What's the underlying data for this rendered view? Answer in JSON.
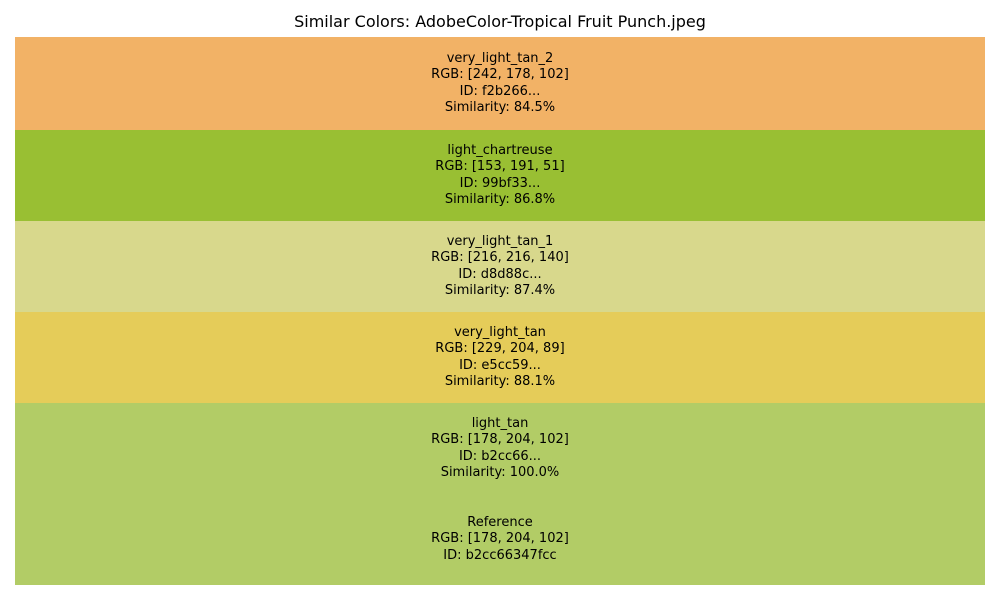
{
  "chart_data": {
    "type": "bar",
    "title": "Similar Colors: AdobeColor-Tropical Fruit Punch.jpeg",
    "orientation": "horizontal-stacked-swatches",
    "grid": false,
    "legend": "none",
    "swatches": [
      {
        "name": "very_light_tan_2",
        "rgb_label": "RGB: [242, 178, 102]",
        "id_label": "ID: f2b266...",
        "similarity_label": "Similarity: 84.5%",
        "similarity": 84.5,
        "color": "#f2b266"
      },
      {
        "name": "light_chartreuse",
        "rgb_label": "RGB: [153, 191, 51]",
        "id_label": "ID: 99bf33...",
        "similarity_label": "Similarity: 86.8%",
        "similarity": 86.8,
        "color": "#99bf33"
      },
      {
        "name": "very_light_tan_1",
        "rgb_label": "RGB: [216, 216, 140]",
        "id_label": "ID: d8d88c...",
        "similarity_label": "Similarity: 87.4%",
        "similarity": 87.4,
        "color": "#d8d88c"
      },
      {
        "name": "very_light_tan",
        "rgb_label": "RGB: [229, 204, 89]",
        "id_label": "ID: e5cc59...",
        "similarity_label": "Similarity: 88.1%",
        "similarity": 88.1,
        "color": "#e5cc59"
      },
      {
        "name": "light_tan",
        "rgb_label": "RGB: [178, 204, 102]",
        "id_label": "ID: b2cc66...",
        "similarity_label": "Similarity: 100.0%",
        "similarity": 100.0,
        "color": "#b2cc66"
      }
    ],
    "reference": {
      "name": "Reference",
      "rgb_label": "RGB: [178, 204, 102]",
      "id_label": "ID: b2cc66347fcc",
      "color": "#b2cc66"
    }
  }
}
